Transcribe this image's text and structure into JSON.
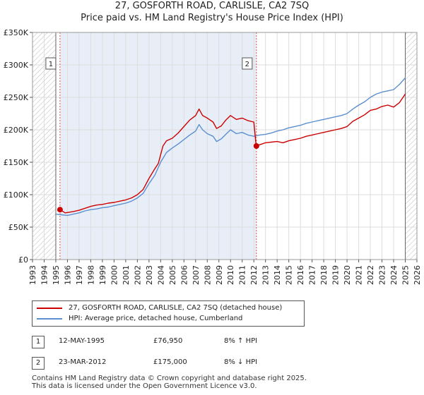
{
  "title": "27, GOSFORTH ROAD, CARLISLE, CA2 7SQ",
  "subtitle": "Price paid vs. HM Land Registry's House Price Index (HPI)",
  "colors": {
    "property": "#cc0000",
    "hpi": "#5b8fcf",
    "band": "#e8eef8",
    "marker_line": "#e05050"
  },
  "chart_data": {
    "type": "line",
    "xlim": [
      1993,
      2026
    ],
    "ylim": [
      0,
      350000
    ],
    "x_ticks": [
      "1993",
      "1994",
      "1995",
      "1996",
      "1997",
      "1998",
      "1999",
      "2000",
      "2001",
      "2002",
      "2003",
      "2004",
      "2005",
      "2006",
      "2007",
      "2008",
      "2009",
      "2010",
      "2011",
      "2012",
      "2013",
      "2014",
      "2015",
      "2016",
      "2017",
      "2018",
      "2019",
      "2020",
      "2021",
      "2022",
      "2023",
      "2024",
      "2025",
      "2026"
    ],
    "y_ticks": [
      {
        "value": 0,
        "label": "£0"
      },
      {
        "value": 50000,
        "label": "£50K"
      },
      {
        "value": 100000,
        "label": "£100K"
      },
      {
        "value": 150000,
        "label": "£150K"
      },
      {
        "value": 200000,
        "label": "£200K"
      },
      {
        "value": 250000,
        "label": "£250K"
      },
      {
        "value": 300000,
        "label": "£300K"
      },
      {
        "value": 350000,
        "label": "£350K"
      }
    ],
    "hatch_before": 1995.0,
    "hatch_after": 2025.0,
    "series": [
      {
        "name": "27, GOSFORTH ROAD, CARLISLE, CA2 7SQ (detached house)",
        "points": [
          [
            1995.36,
            76950
          ],
          [
            1995.8,
            72000
          ],
          [
            1996.5,
            74000
          ],
          [
            1997,
            76000
          ],
          [
            1997.5,
            79000
          ],
          [
            1998,
            82000
          ],
          [
            1998.5,
            84000
          ],
          [
            1999,
            85000
          ],
          [
            1999.5,
            87000
          ],
          [
            2000,
            88000
          ],
          [
            2000.5,
            90000
          ],
          [
            2001,
            92000
          ],
          [
            2001.5,
            95000
          ],
          [
            2002,
            100000
          ],
          [
            2002.5,
            108000
          ],
          [
            2003,
            125000
          ],
          [
            2003.5,
            140000
          ],
          [
            2003.8,
            148000
          ],
          [
            2004.2,
            175000
          ],
          [
            2004.5,
            183000
          ],
          [
            2005,
            187000
          ],
          [
            2005.5,
            195000
          ],
          [
            2006,
            205000
          ],
          [
            2006.5,
            215000
          ],
          [
            2007,
            222000
          ],
          [
            2007.3,
            232000
          ],
          [
            2007.6,
            222000
          ],
          [
            2008,
            218000
          ],
          [
            2008.5,
            212000
          ],
          [
            2008.8,
            202000
          ],
          [
            2009.2,
            206000
          ],
          [
            2009.6,
            215000
          ],
          [
            2010,
            222000
          ],
          [
            2010.5,
            216000
          ],
          [
            2011,
            218000
          ],
          [
            2011.5,
            214000
          ],
          [
            2012.0,
            212000
          ],
          [
            2012.2,
            175000
          ],
          [
            2012.5,
            177000
          ],
          [
            2013,
            180000
          ],
          [
            2013.5,
            181000
          ],
          [
            2014,
            182000
          ],
          [
            2014.5,
            180000
          ],
          [
            2015,
            183000
          ],
          [
            2015.5,
            185000
          ],
          [
            2016,
            187000
          ],
          [
            2016.5,
            190000
          ],
          [
            2017,
            192000
          ],
          [
            2017.5,
            194000
          ],
          [
            2018,
            196000
          ],
          [
            2018.5,
            198000
          ],
          [
            2019,
            200000
          ],
          [
            2019.5,
            202000
          ],
          [
            2020,
            205000
          ],
          [
            2020.5,
            213000
          ],
          [
            2021,
            218000
          ],
          [
            2021.5,
            223000
          ],
          [
            2022,
            230000
          ],
          [
            2022.5,
            232000
          ],
          [
            2023,
            236000
          ],
          [
            2023.5,
            238000
          ],
          [
            2024,
            235000
          ],
          [
            2024.5,
            242000
          ],
          [
            2025.0,
            255000
          ]
        ]
      },
      {
        "name": "HPI: Average price, detached house, Cumberland",
        "points": [
          [
            1995,
            70000
          ],
          [
            1995.5,
            69000
          ],
          [
            1996,
            68000
          ],
          [
            1996.5,
            70000
          ],
          [
            1997,
            72000
          ],
          [
            1997.5,
            75000
          ],
          [
            1998,
            77000
          ],
          [
            1998.5,
            78000
          ],
          [
            1999,
            80000
          ],
          [
            1999.5,
            81000
          ],
          [
            2000,
            83000
          ],
          [
            2000.5,
            85000
          ],
          [
            2001,
            87000
          ],
          [
            2001.5,
            90000
          ],
          [
            2002,
            95000
          ],
          [
            2002.5,
            102000
          ],
          [
            2003,
            117000
          ],
          [
            2003.5,
            130000
          ],
          [
            2004,
            150000
          ],
          [
            2004.5,
            165000
          ],
          [
            2005,
            172000
          ],
          [
            2005.5,
            178000
          ],
          [
            2006,
            185000
          ],
          [
            2006.5,
            192000
          ],
          [
            2007,
            198000
          ],
          [
            2007.3,
            208000
          ],
          [
            2007.6,
            200000
          ],
          [
            2008,
            194000
          ],
          [
            2008.5,
            190000
          ],
          [
            2008.8,
            182000
          ],
          [
            2009.2,
            186000
          ],
          [
            2009.6,
            193000
          ],
          [
            2010,
            200000
          ],
          [
            2010.5,
            194000
          ],
          [
            2011,
            196000
          ],
          [
            2011.5,
            192000
          ],
          [
            2012,
            190000
          ],
          [
            2012.5,
            192000
          ],
          [
            2013,
            193000
          ],
          [
            2013.5,
            195000
          ],
          [
            2014,
            198000
          ],
          [
            2014.5,
            200000
          ],
          [
            2015,
            203000
          ],
          [
            2015.5,
            205000
          ],
          [
            2016,
            207000
          ],
          [
            2016.5,
            210000
          ],
          [
            2017,
            212000
          ],
          [
            2017.5,
            214000
          ],
          [
            2018,
            216000
          ],
          [
            2018.5,
            218000
          ],
          [
            2019,
            220000
          ],
          [
            2019.5,
            222000
          ],
          [
            2020,
            225000
          ],
          [
            2020.5,
            232000
          ],
          [
            2021,
            238000
          ],
          [
            2021.5,
            243000
          ],
          [
            2022,
            250000
          ],
          [
            2022.5,
            255000
          ],
          [
            2023,
            258000
          ],
          [
            2023.5,
            260000
          ],
          [
            2024,
            262000
          ],
          [
            2024.5,
            270000
          ],
          [
            2025.0,
            280000
          ]
        ]
      }
    ],
    "sales": [
      {
        "id": "1",
        "x": 1995.36,
        "y": 76950
      },
      {
        "id": "2",
        "x": 2012.22,
        "y": 175000
      }
    ]
  },
  "legend": {
    "property": "27, GOSFORTH ROAD, CARLISLE, CA2 7SQ (detached house)",
    "hpi": "HPI: Average price, detached house, Cumberland"
  },
  "transactions": [
    {
      "id": "1",
      "date": "12-MAY-1995",
      "price": "£76,950",
      "hpi": "8% ↑ HPI"
    },
    {
      "id": "2",
      "date": "23-MAR-2012",
      "price": "£175,000",
      "hpi": "8% ↓ HPI"
    }
  ],
  "footer": {
    "line1": "Contains HM Land Registry data © Crown copyright and database right 2025.",
    "line2": "This data is licensed under the Open Government Licence v3.0."
  }
}
